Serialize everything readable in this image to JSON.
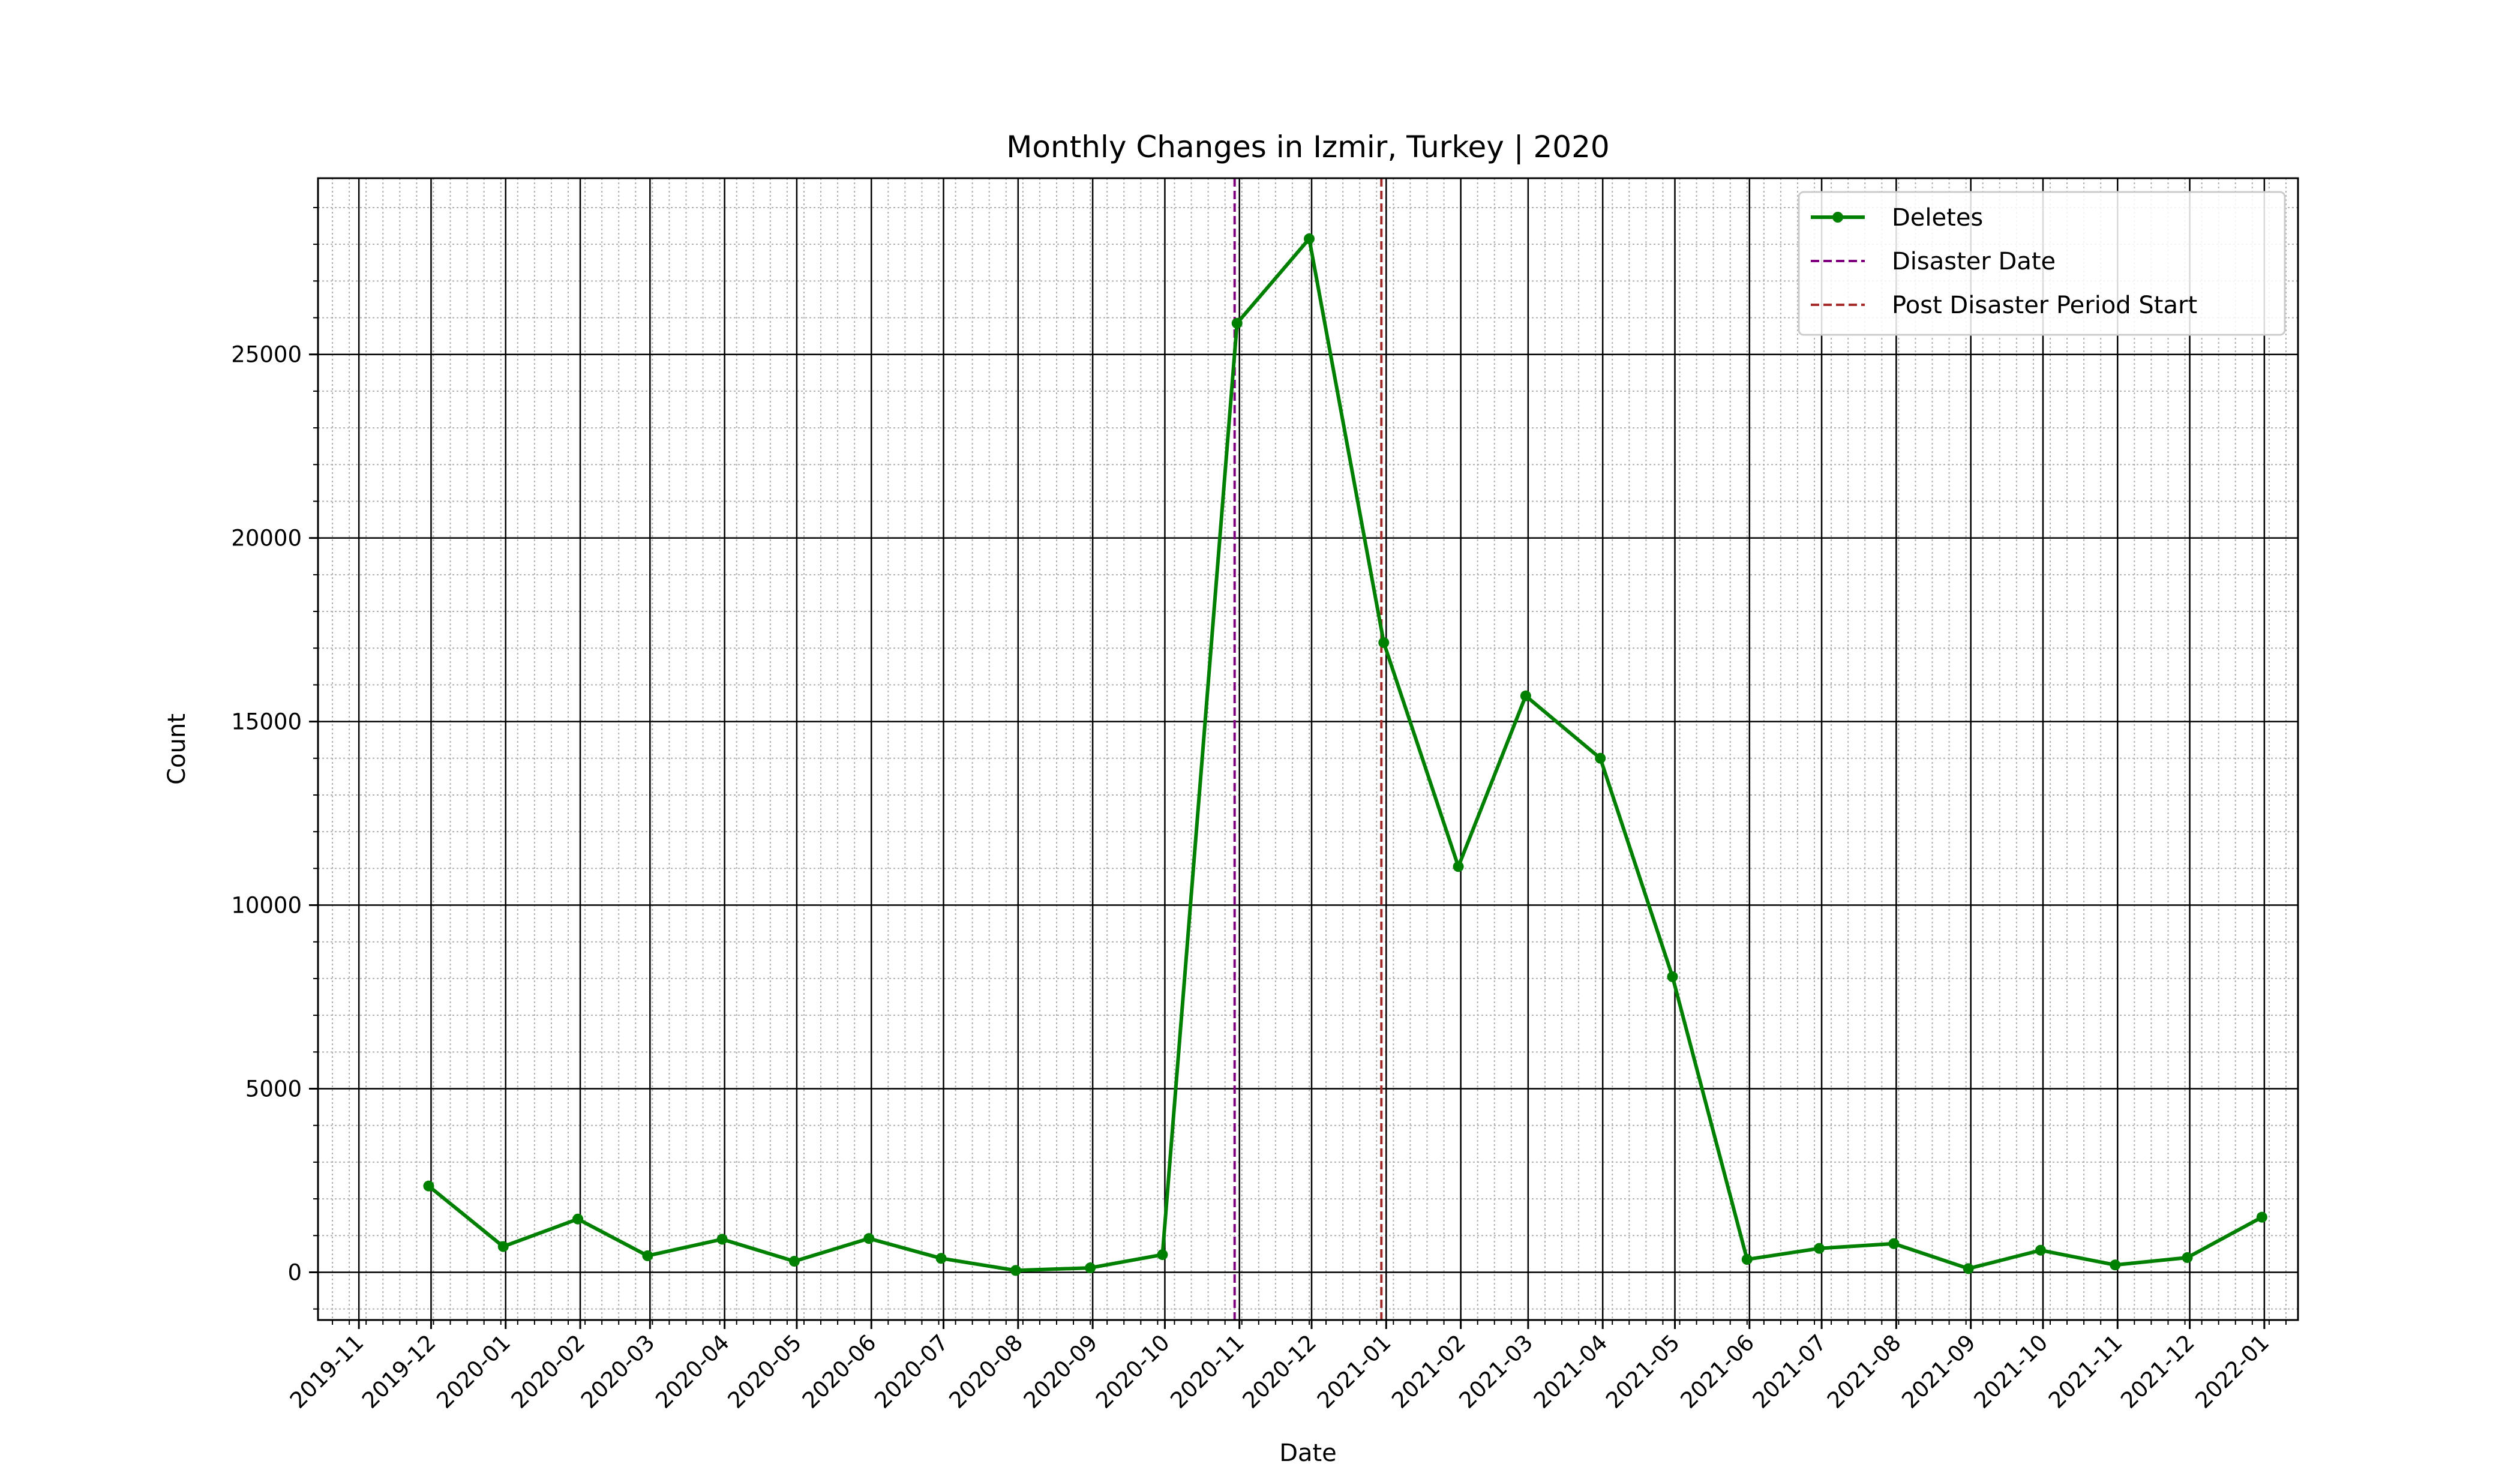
{
  "chart_data": {
    "type": "line",
    "title": "Monthly Changes in Izmir, Turkey | 2020",
    "xlabel": "Date",
    "ylabel": "Count",
    "ylim": [
      -1300,
      29800
    ],
    "xlim": [
      "2019-10-15",
      "2022-01-15"
    ],
    "yticks": [
      0,
      5000,
      10000,
      15000,
      20000,
      25000
    ],
    "xticks": [
      "2019-11",
      "2019-12",
      "2020-01",
      "2020-02",
      "2020-03",
      "2020-04",
      "2020-05",
      "2020-06",
      "2020-07",
      "2020-08",
      "2020-09",
      "2020-10",
      "2020-11",
      "2020-12",
      "2021-01",
      "2021-02",
      "2021-03",
      "2021-04",
      "2021-05",
      "2021-06",
      "2021-07",
      "2021-08",
      "2021-09",
      "2021-10",
      "2021-11",
      "2021-12",
      "2022-01"
    ],
    "grid": true,
    "legend_position": "top-right",
    "series": [
      {
        "name": "Deletes",
        "color": "#008000",
        "marker": "circle",
        "x": [
          "2019-11-30",
          "2019-12-31",
          "2020-01-31",
          "2020-02-29",
          "2020-03-31",
          "2020-04-30",
          "2020-05-31",
          "2020-06-30",
          "2020-07-31",
          "2020-08-31",
          "2020-09-30",
          "2020-10-31",
          "2020-11-30",
          "2020-12-31",
          "2021-01-31",
          "2021-02-28",
          "2021-03-31",
          "2021-04-30",
          "2021-05-31",
          "2021-06-30",
          "2021-07-31",
          "2021-08-31",
          "2021-09-30",
          "2021-10-31",
          "2021-11-30",
          "2021-12-31"
        ],
        "values": [
          2350,
          700,
          1450,
          450,
          900,
          300,
          920,
          380,
          50,
          120,
          480,
          25850,
          28150,
          17150,
          11050,
          15700,
          14000,
          8050,
          350,
          650,
          780,
          100,
          600,
          200,
          400,
          1500
        ]
      }
    ],
    "vlines": [
      {
        "name": "Disaster Date",
        "x": "2020-10-30",
        "color": "#800080",
        "style": "dashed"
      },
      {
        "name": "Post Disaster Period Start",
        "x": "2020-12-30",
        "color": "#a52a2a",
        "style": "dashed"
      }
    ]
  }
}
